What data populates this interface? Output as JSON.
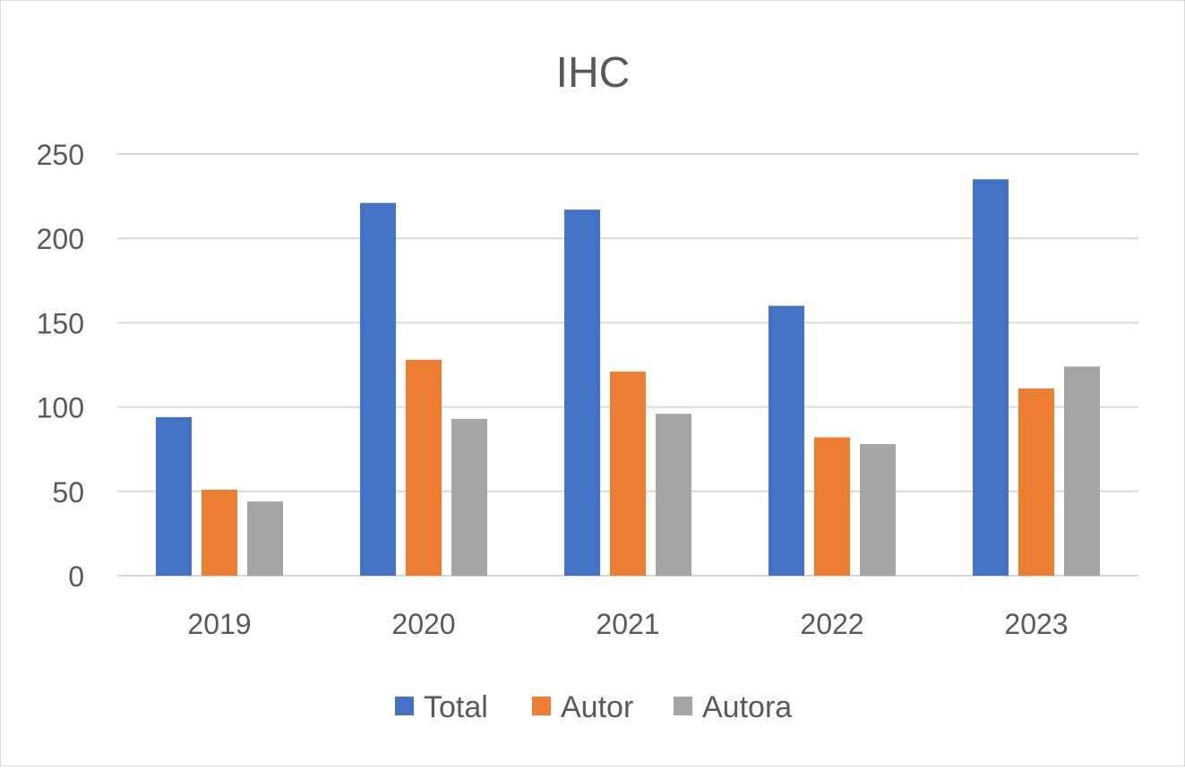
{
  "chart_data": {
    "type": "bar",
    "title": "IHC",
    "xlabel": "",
    "ylabel": "",
    "categories": [
      "2019",
      "2020",
      "2021",
      "2022",
      "2023"
    ],
    "series": [
      {
        "name": "Total",
        "color": "#4472c4",
        "values": [
          94,
          221,
          217,
          160,
          235
        ]
      },
      {
        "name": "Autor",
        "color": "#ed7d31",
        "values": [
          51,
          128,
          121,
          82,
          111
        ]
      },
      {
        "name": "Autora",
        "color": "#a5a5a5",
        "values": [
          44,
          93,
          96,
          78,
          124
        ]
      }
    ],
    "ylim": [
      0,
      250
    ],
    "yticks": [
      "0",
      "50",
      "100",
      "150",
      "200",
      "250"
    ],
    "grid": true,
    "legend_position": "bottom"
  }
}
